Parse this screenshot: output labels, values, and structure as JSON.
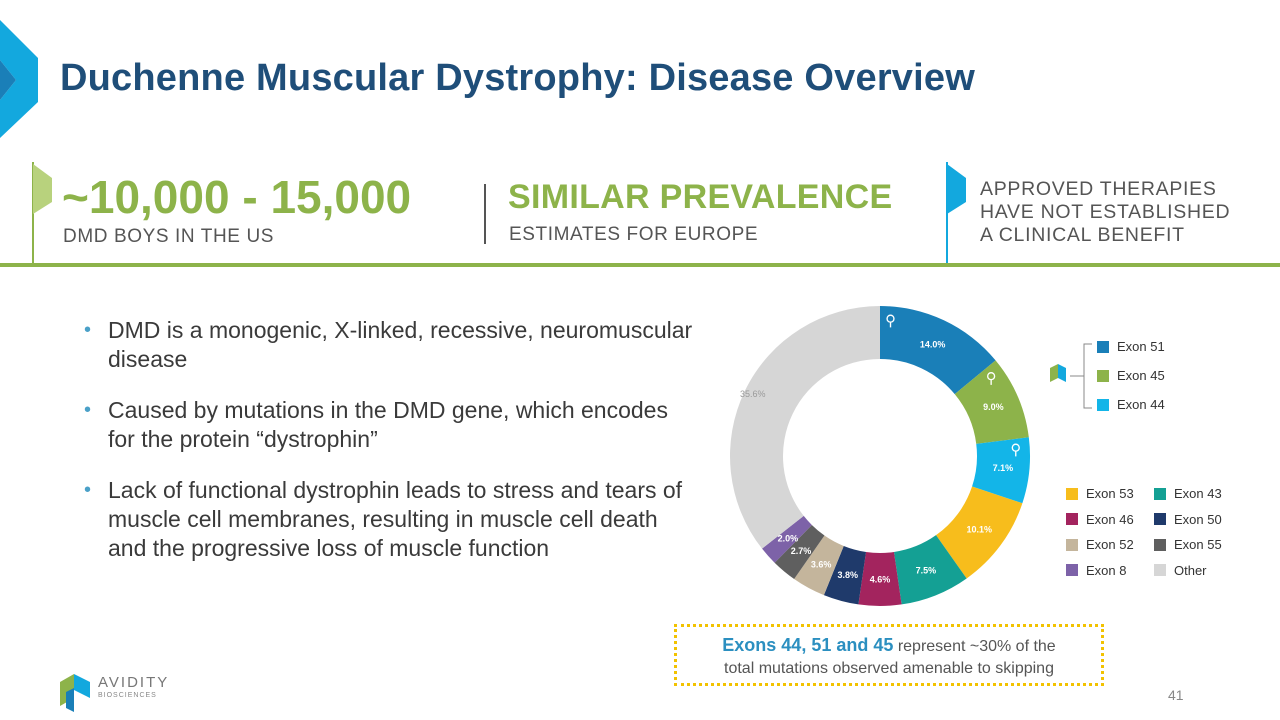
{
  "title": "Duchenne Muscular Dystrophy: Disease Overview",
  "stats": {
    "us_number": "~10,000 - 15,000",
    "us_label": "DMD BOYS IN THE US",
    "europe_heading": "SIMILAR PREVALENCE",
    "europe_label": "ESTIMATES FOR EUROPE",
    "therapies_lines": [
      "APPROVED THERAPIES",
      "HAVE NOT ESTABLISHED",
      "A CLINICAL BENEFIT"
    ]
  },
  "bullets": [
    "DMD is a monogenic, X-linked, recessive, neuromuscular disease",
    "Caused by mutations in the DMD gene, which encodes for the protein “dystrophin”",
    "Lack of functional dystrophin leads to stress and tears of muscle cell membranes, resulting in muscle cell death and the progressive loss of muscle function"
  ],
  "chart_data": {
    "type": "pie",
    "donut": true,
    "unit": "%",
    "slices": [
      {
        "name": "Exon 51",
        "value": 14.0,
        "label": "14.0%",
        "color": "#1a7fb8",
        "highlight": true
      },
      {
        "name": "Exon 45",
        "value": 9.0,
        "label": "9.0%",
        "color": "#8db34a",
        "highlight": true
      },
      {
        "name": "Exon 44",
        "value": 7.1,
        "label": "7.1%",
        "color": "#13b5e8",
        "highlight": true
      },
      {
        "name": "Exon 53",
        "value": 10.1,
        "label": "10.1%",
        "color": "#f7bd1c"
      },
      {
        "name": "Exon 43",
        "value": 7.5,
        "label": "7.5%",
        "color": "#14a094"
      },
      {
        "name": "Exon 46",
        "value": 4.6,
        "label": "4.6%",
        "color": "#a3245e"
      },
      {
        "name": "Exon 50",
        "value": 3.8,
        "label": "3.8%",
        "color": "#1f3a6b"
      },
      {
        "name": "Exon 52",
        "value": 3.6,
        "label": "3.6%",
        "color": "#c4b59c"
      },
      {
        "name": "Exon 55",
        "value": 2.7,
        "label": "2.7%",
        "color": "#5f5f5f"
      },
      {
        "name": "Exon 8",
        "value": 2.0,
        "label": "2.0%",
        "color": "#7d62a8"
      },
      {
        "name": "Other",
        "value": 35.6,
        "label": "35.6%",
        "color": "#d6d6d6"
      }
    ],
    "legend_highlighted": [
      "Exon 51",
      "Exon 45",
      "Exon 44"
    ],
    "legend_other": [
      [
        "Exon 53",
        "Exon 43"
      ],
      [
        "Exon 46",
        "Exon 50"
      ],
      [
        "Exon 52",
        "Exon 55"
      ],
      [
        "Exon 8",
        "Other"
      ]
    ]
  },
  "callout": {
    "highlight": "Exons 44, 51 and 45",
    "line1_rest": " represent ~30% of the",
    "line2": "total mutations observed amenable to skipping"
  },
  "logo": {
    "name": "AVIDITY",
    "sub": "BIOSCIENCES"
  },
  "page_number": "41",
  "colors": {
    "title": "#1f4e79",
    "accent_green": "#8db34a",
    "accent_blue": "#2b8fc0",
    "callout_border": "#f2c200"
  }
}
